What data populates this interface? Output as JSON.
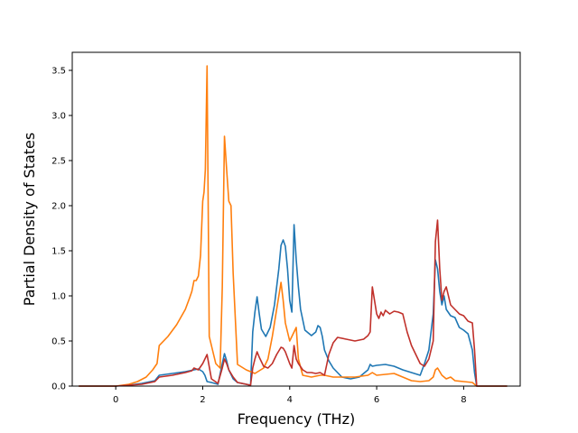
{
  "chart_data": {
    "type": "line",
    "title": "",
    "xlabel": "Frequency (THz)",
    "ylabel": "Partial Density of States",
    "xlim": [
      -1.0,
      9.3
    ],
    "ylim": [
      0.0,
      3.7
    ],
    "xticks": [
      0,
      2,
      4,
      6,
      8
    ],
    "xtick_labels": [
      "0",
      "2",
      "4",
      "6",
      "8"
    ],
    "yticks": [
      0.0,
      0.5,
      1.0,
      1.5,
      2.0,
      2.5,
      3.0,
      3.5
    ],
    "ytick_labels": [
      "0.0",
      "0.5",
      "1.0",
      "1.5",
      "2.0",
      "2.5",
      "3.0",
      "3.5"
    ],
    "grid": false,
    "legend": "none",
    "series": [
      {
        "color": "#1f77b4",
        "x": [
          -0.85,
          0.0,
          0.3,
          0.6,
          0.9,
          1.0,
          1.3,
          1.6,
          1.8,
          1.9,
          2.0,
          2.05,
          2.1,
          2.2,
          2.35,
          2.45,
          2.5,
          2.55,
          2.6,
          2.7,
          2.8,
          3.0,
          3.1,
          3.15,
          3.2,
          3.25,
          3.3,
          3.35,
          3.45,
          3.55,
          3.65,
          3.75,
          3.8,
          3.85,
          3.9,
          3.95,
          4.0,
          4.05,
          4.1,
          4.15,
          4.2,
          4.25,
          4.35,
          4.5,
          4.6,
          4.65,
          4.7,
          4.75,
          4.8,
          4.9,
          5.0,
          5.2,
          5.4,
          5.6,
          5.7,
          5.8,
          5.85,
          5.9,
          6.0,
          6.2,
          6.4,
          6.6,
          6.8,
          7.0,
          7.1,
          7.2,
          7.3,
          7.35,
          7.4,
          7.45,
          7.5,
          7.55,
          7.6,
          7.7,
          7.8,
          7.9,
          8.0,
          8.1,
          8.2,
          8.25,
          8.3,
          9.0
        ],
        "y": [
          0.0,
          0.0,
          0.01,
          0.03,
          0.06,
          0.12,
          0.14,
          0.16,
          0.18,
          0.19,
          0.16,
          0.12,
          0.05,
          0.04,
          0.02,
          0.25,
          0.36,
          0.28,
          0.18,
          0.08,
          0.04,
          0.02,
          0.01,
          0.6,
          0.82,
          0.99,
          0.8,
          0.63,
          0.55,
          0.65,
          0.9,
          1.3,
          1.56,
          1.62,
          1.55,
          1.3,
          0.95,
          0.82,
          1.79,
          1.4,
          1.1,
          0.85,
          0.62,
          0.56,
          0.6,
          0.67,
          0.65,
          0.55,
          0.4,
          0.28,
          0.2,
          0.1,
          0.08,
          0.1,
          0.14,
          0.18,
          0.24,
          0.22,
          0.23,
          0.24,
          0.22,
          0.18,
          0.15,
          0.12,
          0.25,
          0.4,
          0.8,
          1.4,
          1.3,
          1.05,
          0.9,
          1.0,
          0.85,
          0.78,
          0.76,
          0.65,
          0.62,
          0.58,
          0.4,
          0.15,
          0.0,
          0.0
        ]
      },
      {
        "color": "#ff7f0e",
        "x": [
          -0.85,
          0.0,
          0.3,
          0.5,
          0.7,
          0.85,
          0.95,
          1.0,
          1.2,
          1.4,
          1.6,
          1.7,
          1.75,
          1.8,
          1.85,
          1.9,
          1.95,
          2.0,
          2.03,
          2.06,
          2.1,
          2.15,
          2.2,
          2.3,
          2.4,
          2.45,
          2.5,
          2.55,
          2.6,
          2.65,
          2.7,
          2.8,
          3.0,
          3.2,
          3.4,
          3.5,
          3.6,
          3.7,
          3.8,
          3.85,
          3.9,
          4.0,
          4.05,
          4.1,
          4.15,
          4.2,
          4.3,
          4.5,
          4.7,
          4.8,
          5.0,
          5.5,
          5.8,
          5.9,
          6.0,
          6.2,
          6.4,
          6.6,
          6.8,
          7.0,
          7.2,
          7.3,
          7.35,
          7.4,
          7.5,
          7.6,
          7.7,
          7.8,
          8.0,
          8.2,
          8.3,
          9.0
        ],
        "y": [
          0.0,
          0.0,
          0.02,
          0.05,
          0.1,
          0.18,
          0.25,
          0.45,
          0.55,
          0.68,
          0.85,
          0.98,
          1.05,
          1.17,
          1.17,
          1.22,
          1.45,
          2.05,
          2.15,
          2.4,
          3.55,
          0.55,
          0.45,
          0.25,
          0.2,
          1.1,
          2.77,
          2.4,
          2.05,
          2.0,
          1.25,
          0.24,
          0.18,
          0.14,
          0.2,
          0.3,
          0.55,
          0.85,
          1.15,
          0.95,
          0.7,
          0.5,
          0.55,
          0.6,
          0.65,
          0.3,
          0.12,
          0.1,
          0.12,
          0.12,
          0.1,
          0.1,
          0.12,
          0.15,
          0.12,
          0.13,
          0.14,
          0.1,
          0.06,
          0.05,
          0.06,
          0.1,
          0.18,
          0.2,
          0.12,
          0.08,
          0.1,
          0.06,
          0.05,
          0.04,
          0.0,
          0.0
        ]
      },
      {
        "color": "#c0302a",
        "x": [
          -0.85,
          0.0,
          0.3,
          0.6,
          0.9,
          1.0,
          1.3,
          1.6,
          1.75,
          1.8,
          1.9,
          2.0,
          2.05,
          2.1,
          2.2,
          2.35,
          2.45,
          2.5,
          2.55,
          2.6,
          2.7,
          2.8,
          3.0,
          3.1,
          3.15,
          3.2,
          3.25,
          3.3,
          3.4,
          3.5,
          3.6,
          3.7,
          3.8,
          3.85,
          3.9,
          4.0,
          4.05,
          4.1,
          4.15,
          4.2,
          4.3,
          4.4,
          4.5,
          4.6,
          4.7,
          4.8,
          4.9,
          5.0,
          5.1,
          5.3,
          5.5,
          5.7,
          5.8,
          5.85,
          5.9,
          6.0,
          6.05,
          6.1,
          6.15,
          6.2,
          6.3,
          6.4,
          6.5,
          6.6,
          6.7,
          6.8,
          7.0,
          7.1,
          7.2,
          7.3,
          7.35,
          7.4,
          7.45,
          7.5,
          7.55,
          7.6,
          7.7,
          7.8,
          7.9,
          8.0,
          8.1,
          8.2,
          8.25,
          8.3,
          9.0
        ],
        "y": [
          0.0,
          0.0,
          0.01,
          0.02,
          0.05,
          0.1,
          0.12,
          0.15,
          0.17,
          0.2,
          0.18,
          0.25,
          0.3,
          0.35,
          0.08,
          0.03,
          0.2,
          0.3,
          0.25,
          0.18,
          0.1,
          0.04,
          0.02,
          0.01,
          0.2,
          0.3,
          0.38,
          0.32,
          0.22,
          0.2,
          0.25,
          0.35,
          0.43,
          0.42,
          0.38,
          0.25,
          0.2,
          0.45,
          0.3,
          0.25,
          0.18,
          0.15,
          0.15,
          0.14,
          0.15,
          0.12,
          0.35,
          0.48,
          0.54,
          0.52,
          0.5,
          0.52,
          0.56,
          0.6,
          1.1,
          0.8,
          0.75,
          0.82,
          0.78,
          0.84,
          0.8,
          0.83,
          0.82,
          0.8,
          0.6,
          0.45,
          0.25,
          0.22,
          0.3,
          0.5,
          1.6,
          1.84,
          1.3,
          0.95,
          1.05,
          1.1,
          0.9,
          0.85,
          0.8,
          0.78,
          0.72,
          0.7,
          0.4,
          0.0,
          0.0
        ]
      }
    ]
  }
}
